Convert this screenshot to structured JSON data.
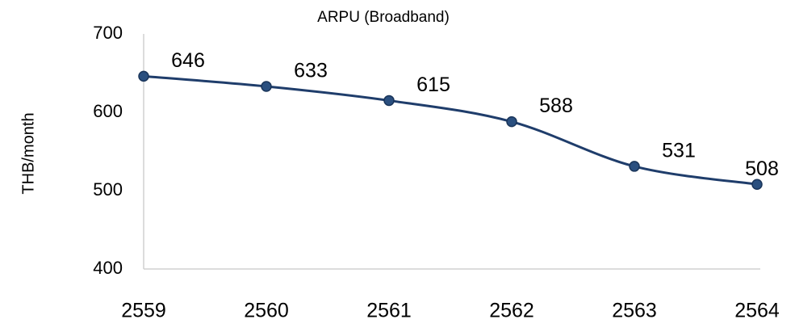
{
  "chart_data": {
    "type": "line",
    "title": "ARPU (Broadband)",
    "y_label": "THB/month",
    "categories": [
      "2559",
      "2560",
      "2561",
      "2562",
      "2563",
      "2564"
    ],
    "series": [
      {
        "name": "ARPU",
        "color": "#1f3d6b",
        "values": [
          646,
          633,
          615,
          588,
          531,
          508
        ]
      }
    ],
    "ylim": [
      400,
      700
    ],
    "yticks": [
      400,
      500,
      600,
      700
    ],
    "grid": false,
    "smooth": true
  }
}
